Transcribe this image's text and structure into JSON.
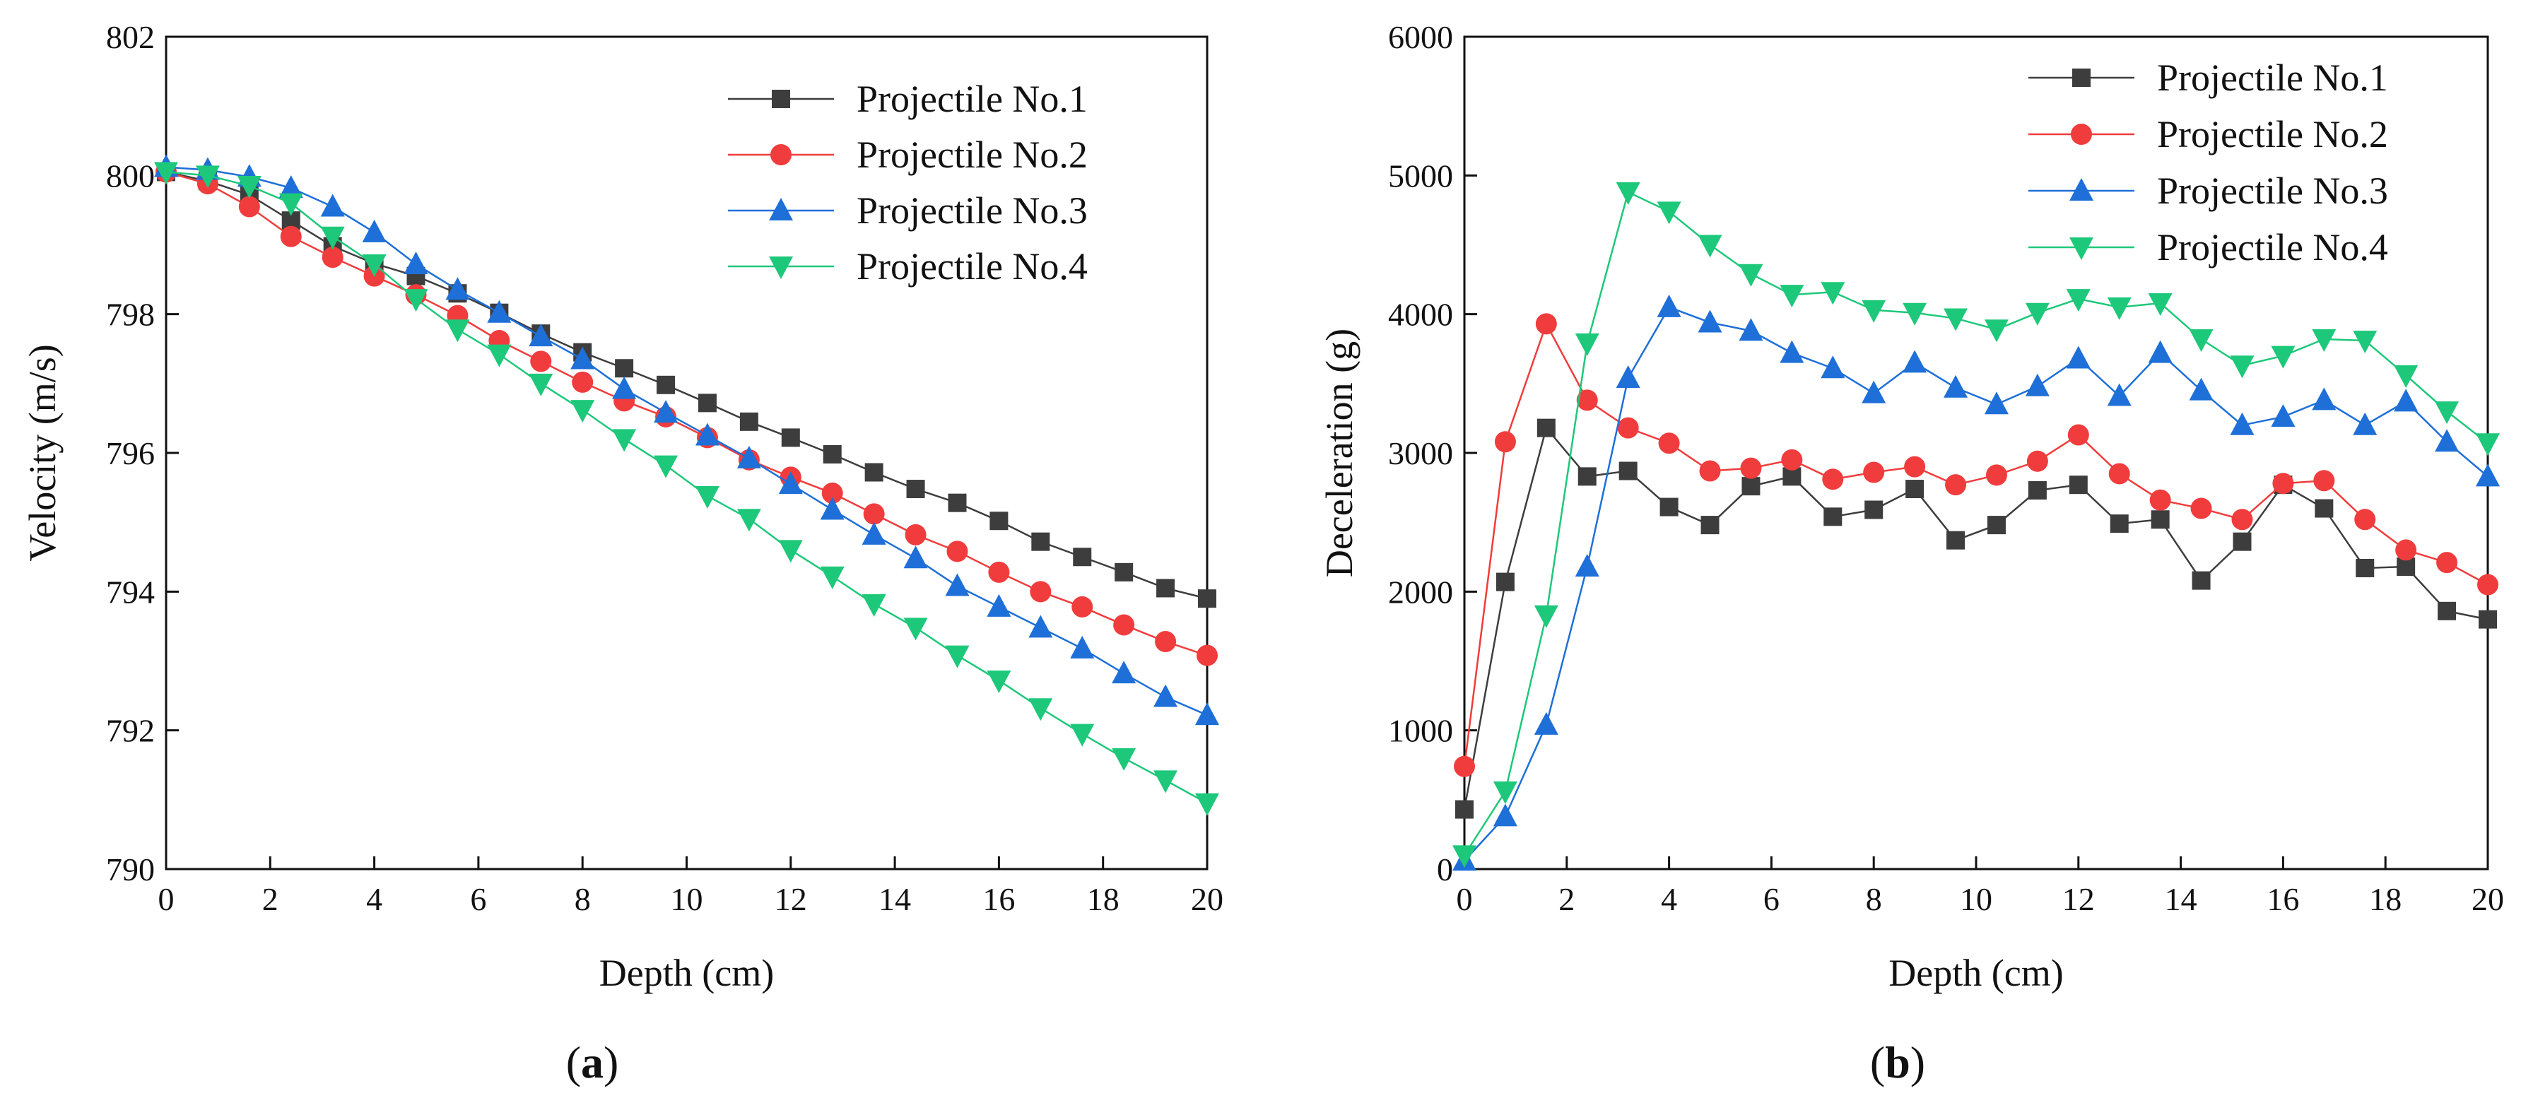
{
  "figure": {
    "panel_labels": [
      {
        "open": "(",
        "letter": "a",
        "close": ")"
      },
      {
        "open": "(",
        "letter": "b",
        "close": ")"
      }
    ]
  },
  "chart_data": [
    {
      "type": "line",
      "title": "",
      "xlabel": "Depth (cm)",
      "ylabel": "Velocity (m/s)",
      "xlim": [
        0,
        20
      ],
      "ylim": [
        790,
        802
      ],
      "xticks": [
        0,
        2,
        4,
        6,
        8,
        10,
        12,
        14,
        16,
        18,
        20
      ],
      "yticks": [
        790,
        792,
        794,
        796,
        798,
        800,
        802
      ],
      "legend_position": "top-right",
      "x": [
        0,
        0.8,
        1.6,
        2.4,
        3.2,
        4.0,
        4.8,
        5.6,
        6.4,
        7.2,
        8.0,
        8.8,
        9.6,
        10.4,
        11.2,
        12.0,
        12.8,
        13.6,
        14.4,
        15.2,
        16.0,
        16.8,
        17.6,
        18.4,
        19.2,
        20.0
      ],
      "series": [
        {
          "name": "Projectile No.1",
          "color": "#3d3d3d",
          "marker": "square",
          "values": [
            800.05,
            799.92,
            799.72,
            799.35,
            798.98,
            798.73,
            798.55,
            798.3,
            798.02,
            797.72,
            797.45,
            797.22,
            796.98,
            796.72,
            796.45,
            796.22,
            795.98,
            795.72,
            795.48,
            795.28,
            795.02,
            794.72,
            794.5,
            794.28,
            794.05,
            793.9
          ]
        },
        {
          "name": "Projectile No.2",
          "color": "#f03c3c",
          "marker": "circle",
          "values": [
            800.05,
            799.88,
            799.55,
            799.12,
            798.82,
            798.55,
            798.28,
            797.98,
            797.62,
            797.32,
            797.02,
            796.75,
            796.52,
            796.22,
            795.9,
            795.65,
            795.42,
            795.12,
            794.82,
            794.58,
            794.28,
            794.0,
            793.78,
            793.52,
            793.28,
            793.08
          ]
        },
        {
          "name": "Projectile No.3",
          "color": "#1e6fd8",
          "marker": "triangle-up",
          "values": [
            800.12,
            800.08,
            799.98,
            799.82,
            799.55,
            799.18,
            798.72,
            798.35,
            798.02,
            797.68,
            797.35,
            796.92,
            796.58,
            796.25,
            795.92,
            795.55,
            795.18,
            794.82,
            794.48,
            794.08,
            793.78,
            793.48,
            793.18,
            792.82,
            792.48,
            792.22
          ]
        },
        {
          "name": "Projectile No.4",
          "color": "#1ec87a",
          "marker": "triangle-down",
          "values": [
            800.05,
            800.0,
            799.85,
            799.6,
            799.12,
            798.72,
            798.22,
            797.78,
            797.42,
            797.0,
            796.62,
            796.2,
            795.82,
            795.38,
            795.05,
            794.6,
            794.22,
            793.82,
            793.48,
            793.08,
            792.72,
            792.32,
            791.95,
            791.6,
            791.28,
            790.95
          ]
        }
      ]
    },
    {
      "type": "line",
      "title": "",
      "xlabel": "Depth (cm)",
      "ylabel": "Deceleration (g)",
      "xlim": [
        0,
        20
      ],
      "ylim": [
        0,
        6000
      ],
      "xticks": [
        0,
        2,
        4,
        6,
        8,
        10,
        12,
        14,
        16,
        18,
        20
      ],
      "yticks": [
        0,
        1000,
        2000,
        3000,
        4000,
        5000,
        6000
      ],
      "legend_position": "top-right",
      "x": [
        0,
        0.8,
        1.6,
        2.4,
        3.2,
        4.0,
        4.8,
        5.6,
        6.4,
        7.2,
        8.0,
        8.8,
        9.6,
        10.4,
        11.2,
        12.0,
        12.8,
        13.6,
        14.4,
        15.2,
        16.0,
        16.8,
        17.6,
        18.4,
        19.2,
        20.0
      ],
      "series": [
        {
          "name": "Projectile No.1",
          "color": "#3d3d3d",
          "marker": "square",
          "values": [
            430,
            2070,
            3180,
            2830,
            2870,
            2610,
            2480,
            2760,
            2830,
            2540,
            2590,
            2740,
            2370,
            2480,
            2730,
            2770,
            2490,
            2520,
            2080,
            2360,
            2770,
            2600,
            2170,
            2180,
            1860,
            1800
          ]
        },
        {
          "name": "Projectile No.2",
          "color": "#f03c3c",
          "marker": "circle",
          "values": [
            740,
            3080,
            3930,
            3380,
            3180,
            3070,
            2870,
            2890,
            2950,
            2810,
            2860,
            2900,
            2770,
            2840,
            2940,
            3130,
            2850,
            2660,
            2600,
            2520,
            2780,
            2800,
            2520,
            2300,
            2210,
            2050
          ]
        },
        {
          "name": "Projectile No.3",
          "color": "#1e6fd8",
          "marker": "triangle-up",
          "values": [
            60,
            380,
            1040,
            2180,
            3540,
            4050,
            3940,
            3880,
            3720,
            3610,
            3430,
            3650,
            3470,
            3350,
            3480,
            3680,
            3410,
            3720,
            3450,
            3200,
            3260,
            3380,
            3200,
            3370,
            3080,
            2830
          ]
        },
        {
          "name": "Projectile No.4",
          "color": "#1ec87a",
          "marker": "triangle-down",
          "values": [
            100,
            560,
            1830,
            3790,
            4880,
            4740,
            4500,
            4290,
            4140,
            4160,
            4030,
            4010,
            3970,
            3890,
            4010,
            4110,
            4050,
            4080,
            3820,
            3630,
            3700,
            3820,
            3810,
            3560,
            3300,
            3070
          ]
        }
      ]
    }
  ]
}
